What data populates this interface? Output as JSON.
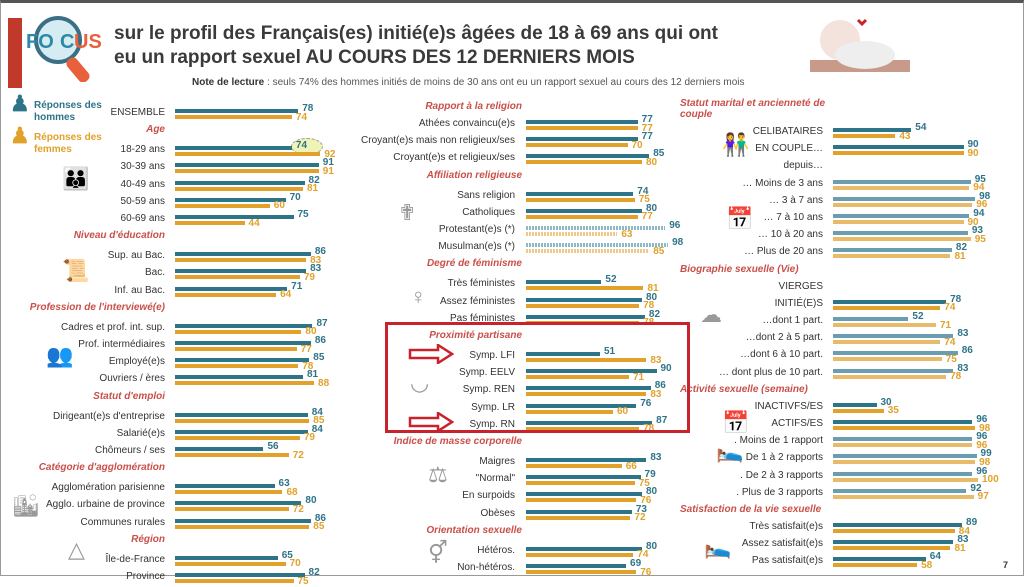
{
  "header": {
    "logo_text": "FOCUS",
    "title_line1": "sur le profil des Français(es) initié(e)s âgées de 18 à 69 ans qui ont",
    "title_line2": "eu un rapport sexuel AU COURS DES 12 DERNIERS MOIS",
    "note_label": "Note de lecture",
    "note_text": " : seuls 74% des hommes initiés de moins de 30 ans ont eu un rapport sexuel au cours des 12 derniers mois"
  },
  "legend": {
    "men": "Réponses des hommes",
    "women": "Réponses des femmes"
  },
  "page_number": "7",
  "colors": {
    "men": "#2e7489",
    "women": "#e1a12b",
    "section": "#c9504a",
    "highlight_box": "#c8232c"
  },
  "chart_data": {
    "type": "bar",
    "title": "Profil des Français(es) initié(e)s ayant eu un rapport sexuel au cours des 12 derniers mois (%)",
    "series_names": [
      "Réponses des hommes",
      "Réponses des femmes"
    ],
    "columns": [
      [
        {
          "label": "ENSEMBLE",
          "men": 78,
          "women": 74
        },
        {
          "section": "Age"
        },
        {
          "label": "18-29 ans",
          "men": 74,
          "women": 92
        },
        {
          "label": "30-39 ans",
          "men": 91,
          "women": 91
        },
        {
          "label": "40-49 ans",
          "men": 82,
          "women": 81
        },
        {
          "label": "50-59 ans",
          "men": 70,
          "women": 60
        },
        {
          "label": "60-69 ans",
          "men": 75,
          "women": 44
        },
        {
          "section": "Niveau d'éducation"
        },
        {
          "label": "Sup. au Bac.",
          "men": 86,
          "women": 83
        },
        {
          "label": "Bac.",
          "men": 83,
          "women": 79
        },
        {
          "label": "Inf. au Bac.",
          "men": 71,
          "women": 64
        },
        {
          "section": "Profession de l'interviewé(e)"
        },
        {
          "label": "Cadres et prof. int. sup.",
          "men": 87,
          "women": 80
        },
        {
          "label": "Prof. intermédiaires",
          "men": 86,
          "women": 77
        },
        {
          "label": "Employé(e)s",
          "men": 85,
          "women": 78
        },
        {
          "label": "Ouvriers / ères",
          "men": 81,
          "women": 88
        },
        {
          "section": "Statut d'emploi"
        },
        {
          "label": "Dirigeant(e)s d'entreprise",
          "men": 84,
          "women": 85
        },
        {
          "label": "Salarié(e)s",
          "men": 84,
          "women": 79
        },
        {
          "label": "Chômeurs / ses",
          "men": 56,
          "women": 72
        },
        {
          "section": "Catégorie d'agglomération"
        },
        {
          "label": "Agglomération parisienne",
          "men": 63,
          "women": 68
        },
        {
          "label": "Agglo. urbaine de province",
          "men": 80,
          "women": 72
        },
        {
          "label": "Communes rurales",
          "men": 86,
          "women": 85
        },
        {
          "section": "Région"
        },
        {
          "label": "Île-de-France",
          "men": 65,
          "women": 70
        },
        {
          "label": "Province",
          "men": 82,
          "women": 75
        }
      ],
      [
        {
          "section": "Rapport à la religion"
        },
        {
          "label": "Athées convaincu(e)s",
          "men": 77,
          "women": 77
        },
        {
          "label": "Croyant(e)s mais non religieux/ses",
          "men": 77,
          "women": 70
        },
        {
          "label": "Croyant(e)s et religieux/ses",
          "men": 85,
          "women": 80
        },
        {
          "section": "Affiliation religieuse"
        },
        {
          "label": "Sans religion",
          "men": 74,
          "women": 75
        },
        {
          "label": "Catholiques",
          "men": 80,
          "women": 77
        },
        {
          "label": "Protestant(e)s (*)",
          "men": 96,
          "women": 63,
          "style": "dashed"
        },
        {
          "label": "Musulman(e)s (*)",
          "men": 98,
          "women": 85,
          "style": "dashed"
        },
        {
          "section": "Degré de féminisme"
        },
        {
          "label": "Très féministes",
          "men": 52,
          "women": 81
        },
        {
          "label": "Assez féministes",
          "men": 80,
          "women": 78
        },
        {
          "label": "Pas féministes",
          "men": 82,
          "women": 78
        },
        {
          "section": "Proximité partisane"
        },
        {
          "label": "Symp. LFI",
          "men": 51,
          "women": 83
        },
        {
          "label": "Symp. EELV",
          "men": 90,
          "women": 71
        },
        {
          "label": "Symp. REN",
          "men": 86,
          "women": 83
        },
        {
          "label": "Symp. LR",
          "men": 76,
          "women": 60
        },
        {
          "label": "Symp. RN",
          "men": 87,
          "women": 78
        },
        {
          "section": "Indice de masse corporelle"
        },
        {
          "label": "Maigres",
          "men": 83,
          "women": 66
        },
        {
          "label": "\"Normal\"",
          "men": 79,
          "women": 75
        },
        {
          "label": "En surpoids",
          "men": 80,
          "women": 76
        },
        {
          "label": "Obèses",
          "men": 73,
          "women": 72
        },
        {
          "section": "Orientation sexuelle"
        },
        {
          "label": "Hétéros.",
          "men": 80,
          "women": 74
        },
        {
          "label": "Non-hétéros.",
          "men": 69,
          "women": 76
        }
      ],
      [
        {
          "section": "Statut marital et ancienneté de couple"
        },
        {
          "label": "CELIBATAIRES",
          "men": 54,
          "women": 43
        },
        {
          "label": "EN COUPLE…",
          "men": 90,
          "women": 90
        },
        {
          "label": "depuis…"
        },
        {
          "label": "… Moins de 3 ans",
          "men": 95,
          "women": 94,
          "style": "light"
        },
        {
          "label": "… 3 à 7 ans",
          "men": 98,
          "women": 96,
          "style": "light"
        },
        {
          "label": "… 7 à 10 ans",
          "men": 94,
          "women": 90,
          "style": "light"
        },
        {
          "label": "… 10 à 20 ans",
          "men": 93,
          "women": 95,
          "style": "light"
        },
        {
          "label": "… Plus de 20 ans",
          "men": 82,
          "women": 81,
          "style": "light"
        },
        {
          "section": "Biographie sexuelle  (Vie)"
        },
        {
          "label": "VIERGES"
        },
        {
          "label": "INITIÉ(E)S",
          "men": 78,
          "women": 74
        },
        {
          "label": "…dont 1 part.",
          "men": 52,
          "women": 71,
          "style": "light"
        },
        {
          "label": "…dont 2 à 5 part.",
          "men": 83,
          "women": 74,
          "style": "light"
        },
        {
          "label": "…dont 6 à 10 part.",
          "men": 86,
          "women": 75,
          "style": "light"
        },
        {
          "label": "… dont plus de 10 part.",
          "men": 83,
          "women": 78,
          "style": "light"
        },
        {
          "section": "Activité sexuelle (semaine)"
        },
        {
          "label": "INACTIVFS/ES",
          "men": 30,
          "women": 35
        },
        {
          "label": "ACTIFS/ES",
          "men": 96,
          "women": 98
        },
        {
          "label": ". Moins de 1 rapport",
          "men": 96,
          "women": 96,
          "style": "light"
        },
        {
          "label": ". De 1 à 2 rapports",
          "men": 99,
          "women": 98,
          "style": "light"
        },
        {
          "label": ". De 2 à 3 rapports",
          "men": 96,
          "women": 100,
          "style": "light"
        },
        {
          "label": ". Plus de 3 rapports",
          "men": 92,
          "women": 97,
          "style": "light"
        },
        {
          "section": "Satisfaction de la vie sexuelle"
        },
        {
          "label": "Très satisfait(e)s",
          "men": 89,
          "women": 84
        },
        {
          "label": "Assez satisfait(e)s",
          "men": 83,
          "women": 81
        },
        {
          "label": "Pas satisfait(e)s",
          "men": 64,
          "women": 58
        }
      ]
    ]
  }
}
